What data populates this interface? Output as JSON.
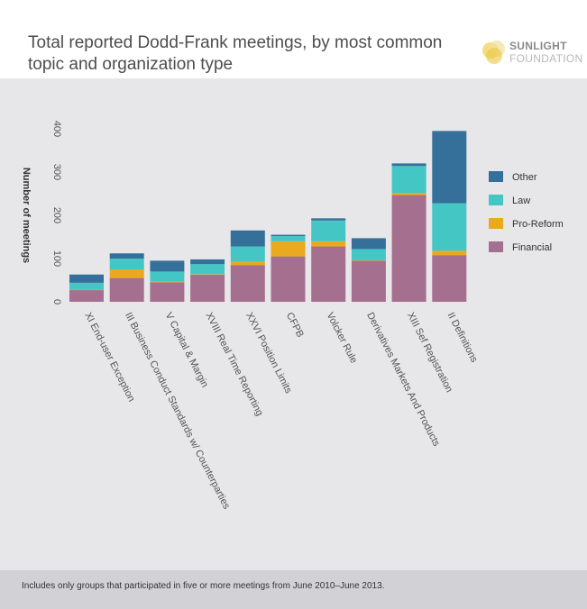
{
  "title": "Total reported Dodd-Frank meetings, by most common topic and organization type",
  "logo": {
    "line1": "SUNLIGHT",
    "line2": "FOUNDATION"
  },
  "footer_note": "Includes only groups that participated in five or more meetings from June 2010–June 2013.",
  "colors": {
    "Other": "#35709a",
    "Law": "#43c6c4",
    "Pro-Reform": "#eaa91e",
    "Financial": "#a5708f"
  },
  "chart_data": {
    "type": "bar",
    "stacked": true,
    "ylabel": "Number of meetings",
    "xlabel": "",
    "ylim": [
      0,
      400
    ],
    "yticks": [
      0,
      100,
      200,
      300,
      400
    ],
    "grid": false,
    "legend_position": "right",
    "categories": [
      "XI End-user Exception",
      "III Business Conduct Standards w/ Counterparties",
      "V Capital & Margin",
      "XVIII Real Time Reporting",
      "XXVI Position Limits",
      "CFPB",
      "Volcker Rule",
      "Derivatives Markets And Products",
      "XIII Sef Registration",
      "II Definitions"
    ],
    "series": [
      {
        "name": "Financial",
        "values": [
          27,
          55,
          45,
          63,
          85,
          105,
          128,
          95,
          247,
          108
        ]
      },
      {
        "name": "Pro-Reform",
        "values": [
          1,
          20,
          2,
          1,
          8,
          35,
          12,
          1,
          5,
          10
        ]
      },
      {
        "name": "Law",
        "values": [
          16,
          25,
          23,
          23,
          35,
          12,
          48,
          26,
          62,
          110
        ]
      },
      {
        "name": "Other",
        "values": [
          19,
          12,
          25,
          11,
          37,
          3,
          5,
          25,
          6,
          167
        ]
      }
    ],
    "legend": [
      "Other",
      "Law",
      "Pro-Reform",
      "Financial"
    ]
  }
}
